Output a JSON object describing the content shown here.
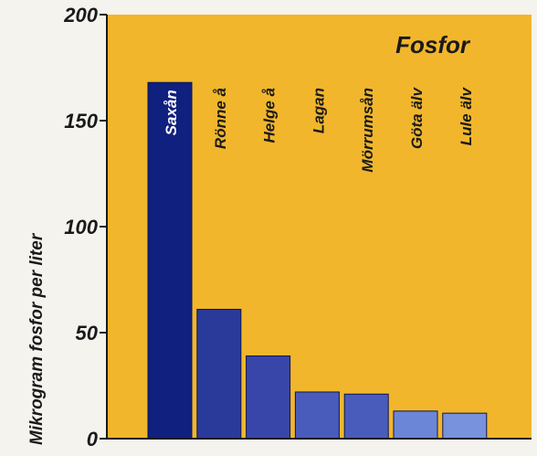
{
  "chart_data": {
    "type": "bar",
    "title": "Fosfor",
    "ylabel": "Mikrogram fosfor per liter",
    "xlabel": "",
    "ylim": [
      0,
      200
    ],
    "yticks": [
      0,
      50,
      100,
      150,
      200
    ],
    "categories": [
      "Saxån",
      "Rönne å",
      "Helge å",
      "Lagan",
      "Mörrumsån",
      "Göta älv",
      "Lule älv"
    ],
    "values": [
      168,
      61,
      39,
      22,
      21,
      13,
      12
    ],
    "grid": false,
    "legend": "none"
  },
  "colors": {
    "plot_background": "#f1b62c",
    "page_background": "#f4f3ee",
    "axis": "#1a1a1a",
    "label_text": "#1a1a1a",
    "inside_label_text": "#ffffff",
    "bars": [
      "#10207e",
      "#2a3a9a",
      "#3746a8",
      "#4a5cbb",
      "#4a5cbb",
      "#6b86d6",
      "#7892de"
    ]
  }
}
